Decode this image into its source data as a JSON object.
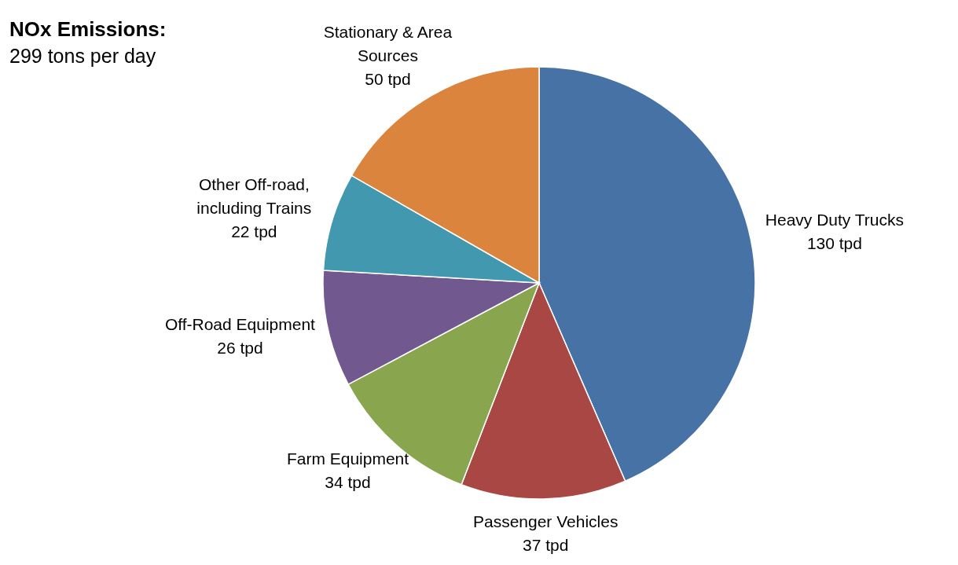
{
  "chart_data": {
    "type": "pie",
    "title": "NOx Emissions:",
    "subtitle": "299 tons per day",
    "categories": [
      "Heavy Duty Trucks",
      "Passenger Vehicles",
      "Farm Equipment",
      "Off-Road Equipment",
      "Other Off-road, including Trains",
      "Stationary & Area Sources"
    ],
    "values": [
      130,
      37,
      34,
      26,
      22,
      50
    ],
    "value_labels": [
      "130 tpd",
      "37 tpd",
      "34 tpd",
      "26 tpd",
      "22 tpd",
      "50 tpd"
    ],
    "colors": [
      "#4672a6",
      "#a84744",
      "#89a54e",
      "#71588f",
      "#4198af",
      "#db843d"
    ]
  }
}
